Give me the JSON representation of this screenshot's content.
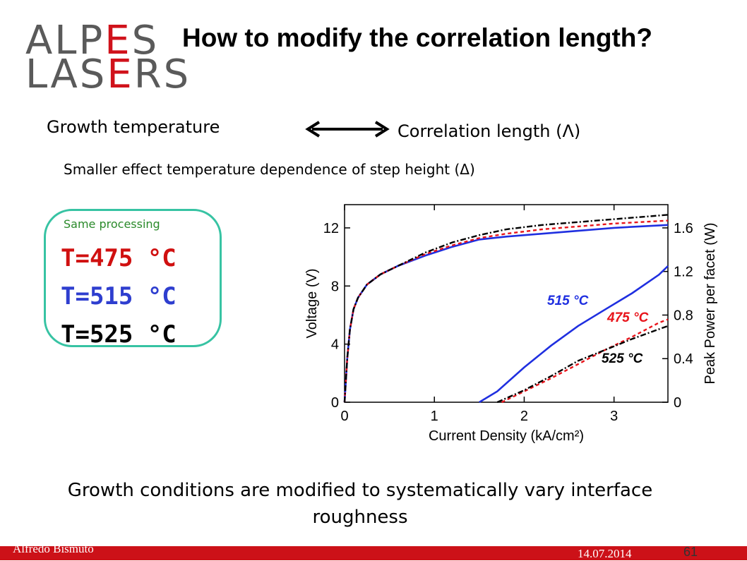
{
  "logo": {
    "line1_a": "ALP",
    "line1_b": "E",
    "line1_c": "S",
    "line2_a": "LAS",
    "line2_b": "E",
    "line2_c": "RS"
  },
  "title": "How to modify the correlation length?",
  "growth_temperature": "Growth temperature",
  "correlation_length": "Correlation length (Λ)",
  "subtitle": "Smaller effect temperature dependence of step height (Δ)",
  "box": {
    "label": "Same processing",
    "t1": "T=475 °C",
    "t2": "T=515 °C",
    "t3": "T=525 °C"
  },
  "colors": {
    "red": "#e8141b",
    "blue": "#1f2fe0",
    "black": "#000000",
    "box_border": "#37c3a3"
  },
  "chart_data": {
    "type": "line",
    "xlabel": "Current Density (kA/cm²)",
    "ylabel": "Voltage (V)",
    "y2label": "Peak Power per facet (W)",
    "xlim": [
      0,
      3.6
    ],
    "ylim": [
      0,
      13.6
    ],
    "y2lim": [
      0,
      1.8133
    ],
    "x_ticks": [
      "0",
      "1",
      "2",
      "3"
    ],
    "y_ticks": [
      "0",
      "4",
      "8",
      "12"
    ],
    "y2_ticks": [
      "0",
      "0.4",
      "0.8",
      "1.2",
      "1.6"
    ],
    "annotations": [
      "515 °C",
      "475 °C",
      "525 °C"
    ],
    "series": [
      {
        "name": "515 °C",
        "axis": "left",
        "style": "solid",
        "color": "#1f2fe0",
        "x": [
          0.0,
          0.03,
          0.06,
          0.1,
          0.15,
          0.25,
          0.4,
          0.6,
          0.9,
          1.2,
          1.5,
          1.8,
          2.2,
          2.6,
          3.0,
          3.6
        ],
        "y": [
          0.0,
          3.0,
          5.0,
          6.4,
          7.2,
          8.1,
          8.8,
          9.4,
          10.1,
          10.7,
          11.2,
          11.4,
          11.6,
          11.8,
          12.0,
          12.2
        ]
      },
      {
        "name": "475 °C",
        "axis": "left",
        "style": "dashed",
        "color": "#e8141b",
        "x": [
          0.0,
          0.03,
          0.06,
          0.1,
          0.15,
          0.25,
          0.4,
          0.6,
          0.9,
          1.2,
          1.5,
          1.8,
          2.2,
          2.6,
          3.0,
          3.6
        ],
        "y": [
          0.0,
          3.0,
          5.0,
          6.4,
          7.2,
          8.1,
          8.8,
          9.4,
          10.2,
          10.8,
          11.3,
          11.6,
          11.9,
          12.1,
          12.3,
          12.5
        ]
      },
      {
        "name": "525 °C",
        "axis": "left",
        "style": "dashdot",
        "color": "#000000",
        "x": [
          0.0,
          0.03,
          0.06,
          0.1,
          0.15,
          0.25,
          0.4,
          0.6,
          0.9,
          1.2,
          1.5,
          1.8,
          2.2,
          2.6,
          3.0,
          3.6
        ],
        "y": [
          0.0,
          3.0,
          5.0,
          6.4,
          7.2,
          8.1,
          8.8,
          9.4,
          10.3,
          11.0,
          11.5,
          11.9,
          12.2,
          12.4,
          12.6,
          12.9
        ]
      },
      {
        "name": "515 °C",
        "axis": "right",
        "style": "solid",
        "color": "#1f2fe0",
        "x": [
          1.5,
          1.7,
          2.0,
          2.3,
          2.6,
          2.9,
          3.2,
          3.5,
          3.6
        ],
        "y": [
          0.0,
          0.1,
          0.32,
          0.52,
          0.7,
          0.85,
          1.0,
          1.17,
          1.25
        ]
      },
      {
        "name": "475 °C",
        "axis": "right",
        "style": "dashed",
        "color": "#e8141b",
        "x": [
          1.75,
          2.0,
          2.3,
          2.6,
          2.9,
          3.2,
          3.5,
          3.6
        ],
        "y": [
          0.0,
          0.1,
          0.22,
          0.35,
          0.48,
          0.6,
          0.73,
          0.76
        ]
      },
      {
        "name": "525 °C",
        "axis": "right",
        "style": "dashdot",
        "color": "#000000",
        "x": [
          1.7,
          2.0,
          2.3,
          2.6,
          2.9,
          3.2,
          3.5,
          3.6
        ],
        "y": [
          0.0,
          0.11,
          0.24,
          0.38,
          0.48,
          0.58,
          0.67,
          0.7
        ]
      }
    ]
  },
  "bottom_text": "Growth conditions are modified to systematically vary interface roughness",
  "footer": {
    "author": "Alfredo Bismuto",
    "date": "14.07.2014",
    "page": "61"
  }
}
